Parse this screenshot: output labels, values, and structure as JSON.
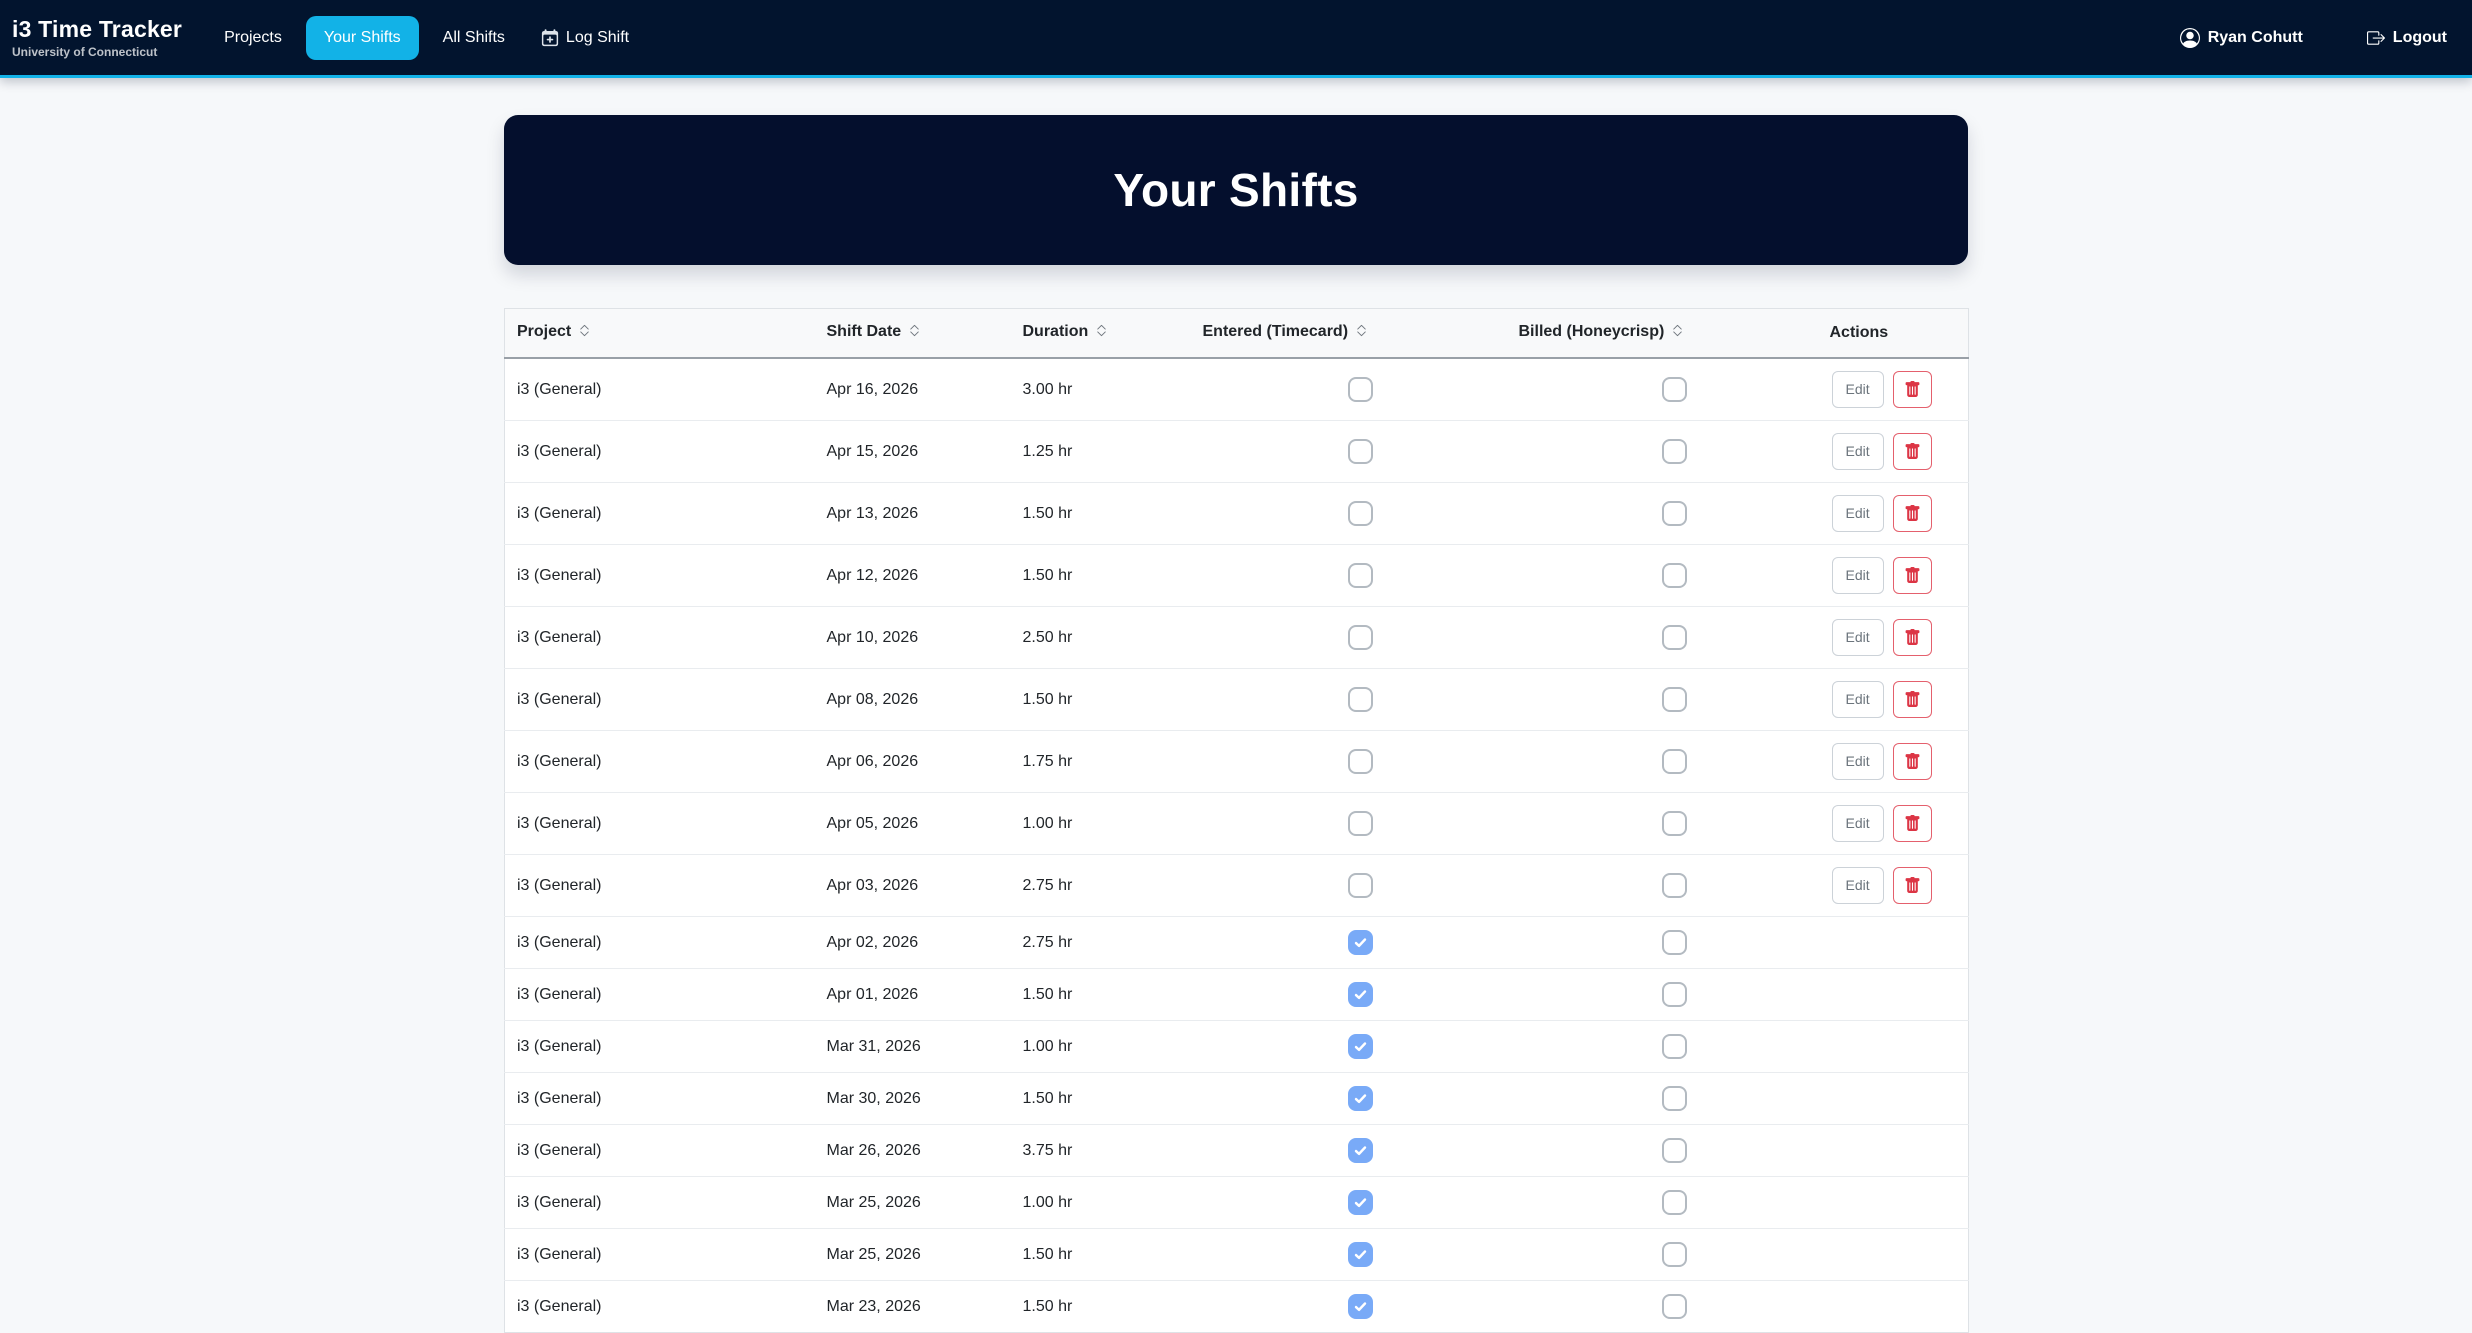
{
  "navbar": {
    "brand": "i3 Time Tracker",
    "brand_subtitle": "University of Connecticut",
    "items": [
      {
        "label": "Projects",
        "active": false,
        "icon": null
      },
      {
        "label": "Your Shifts",
        "active": true,
        "icon": null
      },
      {
        "label": "All Shifts",
        "active": false,
        "icon": null
      },
      {
        "label": "Log Shift",
        "active": false,
        "icon": "calendar-plus"
      }
    ],
    "user": "Ryan Cohutt",
    "logout_label": "Logout"
  },
  "page": {
    "title": "Your Shifts"
  },
  "table": {
    "columns": [
      {
        "label": "Project",
        "sortable": true
      },
      {
        "label": "Shift Date",
        "sortable": true
      },
      {
        "label": "Duration",
        "sortable": true
      },
      {
        "label": "Entered (Timecard)",
        "sortable": true
      },
      {
        "label": "Billed (Honeycrisp)",
        "sortable": true
      },
      {
        "label": "Actions",
        "sortable": false
      }
    ],
    "edit_label": "Edit",
    "rows": [
      {
        "project": "i3 (General)",
        "date": "Apr 16, 2026",
        "duration": "3.00 hr",
        "entered": false,
        "billed": false,
        "editable": true
      },
      {
        "project": "i3 (General)",
        "date": "Apr 15, 2026",
        "duration": "1.25 hr",
        "entered": false,
        "billed": false,
        "editable": true
      },
      {
        "project": "i3 (General)",
        "date": "Apr 13, 2026",
        "duration": "1.50 hr",
        "entered": false,
        "billed": false,
        "editable": true
      },
      {
        "project": "i3 (General)",
        "date": "Apr 12, 2026",
        "duration": "1.50 hr",
        "entered": false,
        "billed": false,
        "editable": true
      },
      {
        "project": "i3 (General)",
        "date": "Apr 10, 2026",
        "duration": "2.50 hr",
        "entered": false,
        "billed": false,
        "editable": true
      },
      {
        "project": "i3 (General)",
        "date": "Apr 08, 2026",
        "duration": "1.50 hr",
        "entered": false,
        "billed": false,
        "editable": true
      },
      {
        "project": "i3 (General)",
        "date": "Apr 06, 2026",
        "duration": "1.75 hr",
        "entered": false,
        "billed": false,
        "editable": true
      },
      {
        "project": "i3 (General)",
        "date": "Apr 05, 2026",
        "duration": "1.00 hr",
        "entered": false,
        "billed": false,
        "editable": true
      },
      {
        "project": "i3 (General)",
        "date": "Apr 03, 2026",
        "duration": "2.75 hr",
        "entered": false,
        "billed": false,
        "editable": true
      },
      {
        "project": "i3 (General)",
        "date": "Apr 02, 2026",
        "duration": "2.75 hr",
        "entered": true,
        "billed": false,
        "editable": false
      },
      {
        "project": "i3 (General)",
        "date": "Apr 01, 2026",
        "duration": "1.50 hr",
        "entered": true,
        "billed": false,
        "editable": false
      },
      {
        "project": "i3 (General)",
        "date": "Mar 31, 2026",
        "duration": "1.00 hr",
        "entered": true,
        "billed": false,
        "editable": false
      },
      {
        "project": "i3 (General)",
        "date": "Mar 30, 2026",
        "duration": "1.50 hr",
        "entered": true,
        "billed": false,
        "editable": false
      },
      {
        "project": "i3 (General)",
        "date": "Mar 26, 2026",
        "duration": "3.75 hr",
        "entered": true,
        "billed": false,
        "editable": false
      },
      {
        "project": "i3 (General)",
        "date": "Mar 25, 2026",
        "duration": "1.00 hr",
        "entered": true,
        "billed": false,
        "editable": false
      },
      {
        "project": "i3 (General)",
        "date": "Mar 25, 2026",
        "duration": "1.50 hr",
        "entered": true,
        "billed": false,
        "editable": false
      },
      {
        "project": "i3 (General)",
        "date": "Mar 23, 2026",
        "duration": "1.50 hr",
        "entered": true,
        "billed": false,
        "editable": false
      }
    ]
  },
  "colors": {
    "navbar_bg": "#02142e",
    "banner_bg": "#040f2d",
    "accent_cyan": "#12b2e7",
    "checked_blue": "#79aaf7",
    "danger_red": "#dc3545",
    "page_bg": "#f6f8fa"
  }
}
